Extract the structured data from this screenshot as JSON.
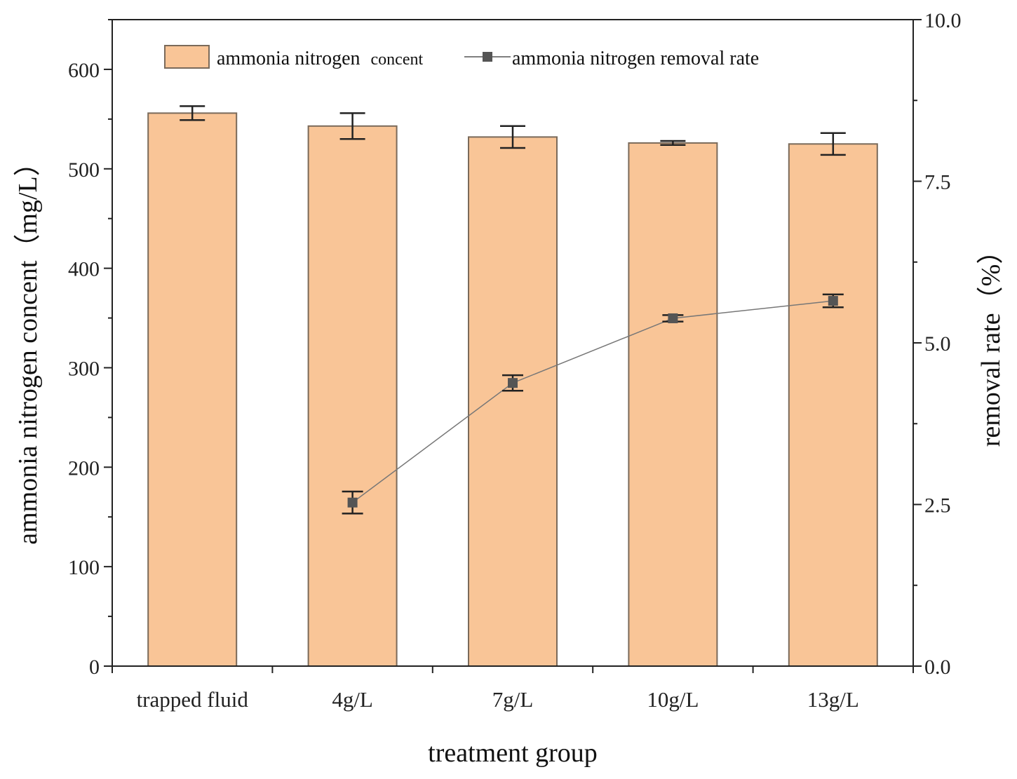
{
  "chart_data": {
    "type": "bar+line",
    "categories": [
      "trapped fluid",
      "4g/L",
      "7g/L",
      "10g/L",
      "13g/L"
    ],
    "xlabel": "treatment group",
    "left_axis": {
      "label": "ammonia nitrogen concent（mg/L）",
      "ylim": [
        0,
        650
      ],
      "ticks": [
        0,
        100,
        200,
        300,
        400,
        500,
        600
      ],
      "tick_labels": [
        "0",
        "100",
        "200",
        "300",
        "400",
        "500",
        "600"
      ]
    },
    "right_axis": {
      "label": "removal rate（%）",
      "ylim": [
        0,
        10
      ],
      "ticks": [
        0,
        2.5,
        5,
        7.5,
        10
      ],
      "tick_labels": [
        "0.0",
        "2.5",
        "5.0",
        "7.5",
        "10.0"
      ]
    },
    "series": [
      {
        "name": "ammonia nitrogen concent",
        "kind": "bar",
        "axis": "left",
        "color": "#F9C597",
        "edge_color": "#7a6a5a",
        "values": [
          556,
          543,
          532,
          526,
          525
        ],
        "errors": [
          7,
          13,
          11,
          2,
          11
        ]
      },
      {
        "name": "ammonia nitrogen removal rate",
        "kind": "line",
        "axis": "right",
        "color": "#555555",
        "marker": "square",
        "values": [
          null,
          2.53,
          4.38,
          5.38,
          5.65
        ],
        "errors": [
          null,
          0.17,
          0.12,
          0.05,
          0.1
        ]
      }
    ],
    "legend": {
      "placement": "top",
      "bar_label": "ammonia nitrogen",
      "bar_label_small": "concent",
      "line_label": "ammonia nitrogen removal rate"
    }
  }
}
